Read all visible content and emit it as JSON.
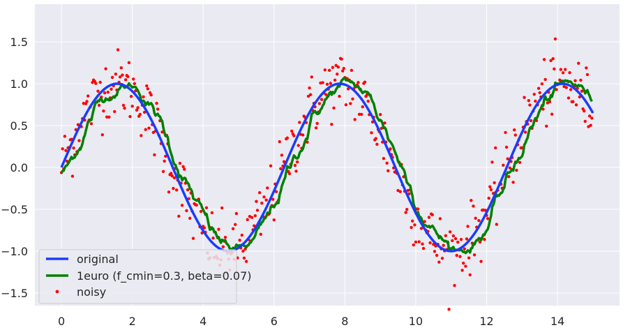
{
  "chart_data": {
    "type": "line",
    "title": "",
    "xlabel": "",
    "ylabel": "",
    "xlim": [
      -0.75,
      15.75
    ],
    "ylim": [
      -1.65,
      1.95
    ],
    "grid": true,
    "legend_placement": "lower-left",
    "xticks": [
      "0",
      "2",
      "4",
      "6",
      "8",
      "10",
      "12",
      "14"
    ],
    "yticks": [
      "1.5",
      "1.0",
      "0.5",
      "0.0",
      "−0.5",
      "−1.0",
      "−1.5"
    ],
    "xtick_values": [
      0,
      2,
      4,
      6,
      8,
      10,
      12,
      14
    ],
    "ytick_values": [
      1.5,
      1.0,
      0.5,
      0.0,
      -0.5,
      -1.0,
      -1.5
    ],
    "series": [
      {
        "name": "original",
        "color": "#1a3cff",
        "style": "line",
        "x": [
          0,
          0.5,
          1.0,
          1.5,
          2.0,
          2.5,
          3.0,
          3.5,
          4.0,
          4.5,
          5.0,
          5.5,
          6.0,
          6.5,
          7.0,
          7.5,
          8.0,
          8.5,
          9.0,
          9.5,
          10.0,
          10.5,
          11.0,
          11.5,
          12.0,
          12.5,
          13.0,
          13.5,
          14.0,
          14.5,
          15.0
        ],
        "y": [
          0.0,
          0.48,
          0.84,
          1.0,
          0.91,
          0.6,
          0.14,
          -0.35,
          -0.76,
          -0.98,
          -0.96,
          -0.71,
          -0.28,
          0.22,
          0.66,
          0.94,
          0.99,
          0.8,
          0.41,
          -0.08,
          -0.54,
          -0.88,
          -1.0,
          -0.88,
          -0.54,
          -0.07,
          0.42,
          0.8,
          0.99,
          0.93,
          0.65
        ]
      },
      {
        "name": "1euro (f_cmin=0.3, beta=0.07)",
        "color": "#008000",
        "style": "line",
        "x": [
          0,
          0.5,
          1.0,
          1.5,
          2.0,
          2.5,
          3.0,
          3.5,
          4.0,
          4.5,
          5.0,
          5.5,
          6.0,
          6.5,
          7.0,
          7.5,
          8.0,
          8.5,
          9.0,
          9.5,
          10.0,
          10.5,
          11.0,
          11.5,
          12.0,
          12.5,
          13.0,
          13.5,
          14.0,
          14.5,
          15.0
        ],
        "y": [
          0.15,
          0.25,
          0.5,
          0.7,
          0.88,
          0.7,
          0.25,
          -0.18,
          -0.45,
          -0.78,
          -0.93,
          -0.82,
          -0.45,
          0.0,
          0.55,
          0.8,
          0.92,
          0.85,
          0.5,
          0.1,
          -0.38,
          -0.66,
          -0.85,
          -0.96,
          -0.65,
          -0.38,
          0.1,
          0.52,
          0.84,
          0.98,
          0.72
        ]
      },
      {
        "name": "noisy",
        "color": "#ff0000",
        "style": "scatter"
      }
    ]
  },
  "legend": {
    "items": [
      {
        "label": "original",
        "color": "#1a3cff"
      },
      {
        "label": "1euro (f_cmin=0.3, beta=0.07)",
        "color": "#008000"
      },
      {
        "label": "noisy",
        "color": "#ff0000"
      }
    ]
  }
}
